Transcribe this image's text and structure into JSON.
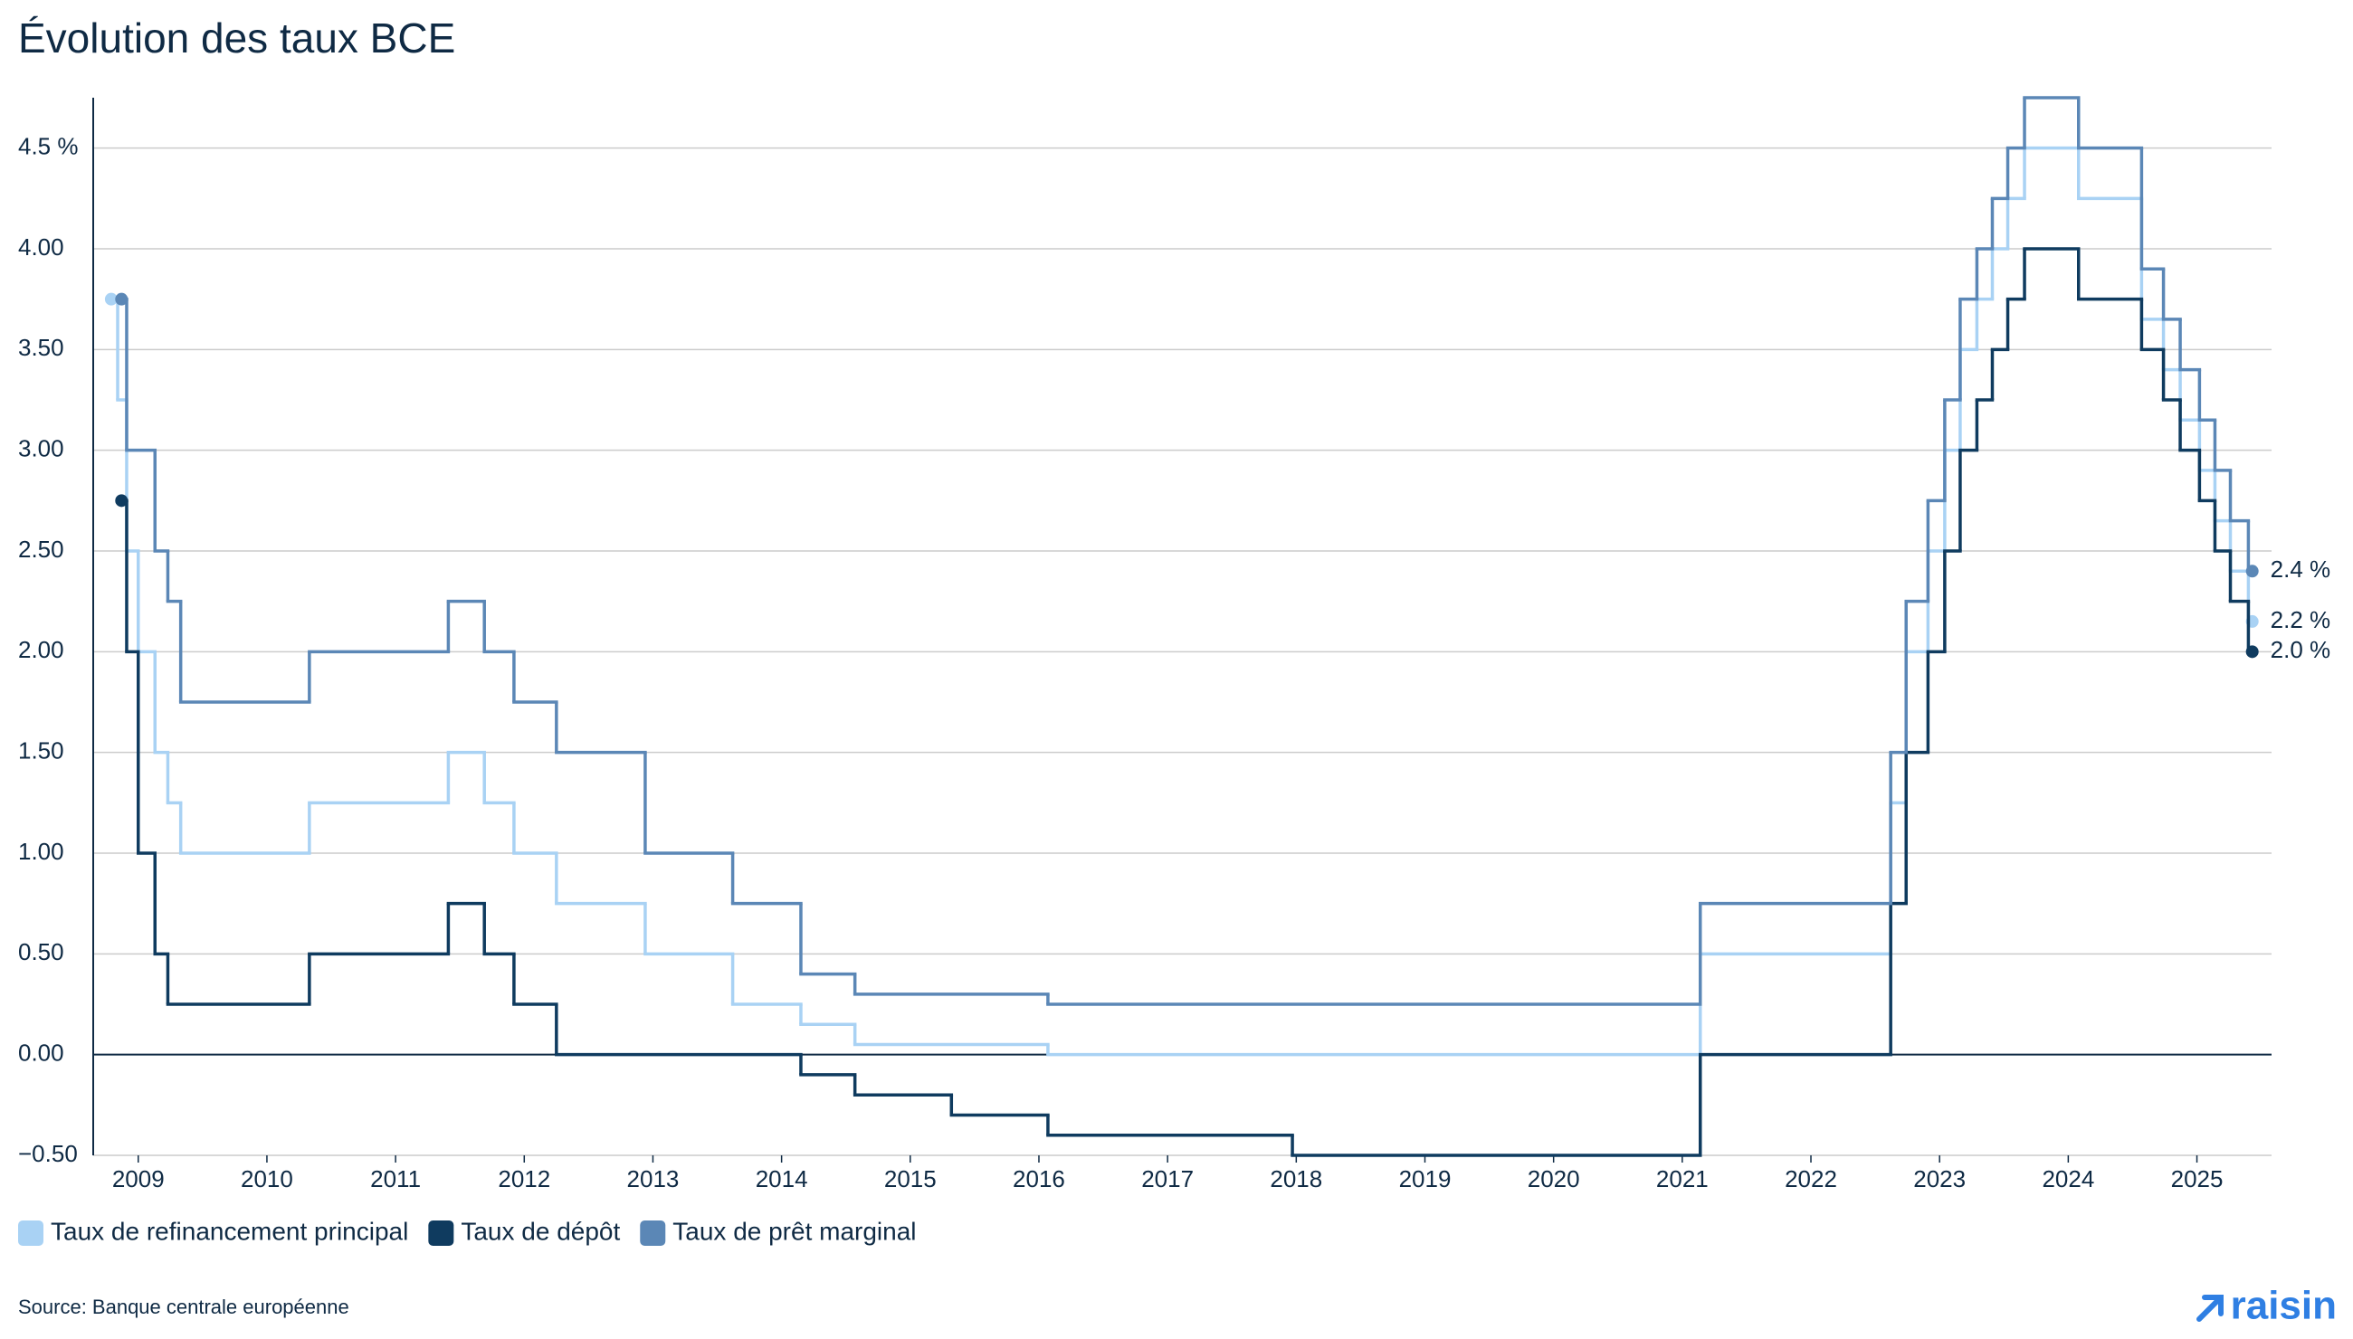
{
  "chart_data": {
    "type": "step",
    "title": "Évolution des taux BCE",
    "source": "Source: Banque centrale européenne",
    "brand": "raisin",
    "xlim": [
      2008.65,
      2025.58
    ],
    "xticks": [
      2009,
      2010,
      2011,
      2012,
      2013,
      2014,
      2015,
      2016,
      2017,
      2018,
      2019,
      2020,
      2021,
      2022,
      2023,
      2024,
      2025
    ],
    "ylim": [
      -0.5,
      4.75
    ],
    "yticks": [
      {
        "value": -0.5,
        "label": "−0.50"
      },
      {
        "value": 0,
        "label": "0.00"
      },
      {
        "value": 0.5,
        "label": "0.50"
      },
      {
        "value": 1,
        "label": "1.00"
      },
      {
        "value": 1.5,
        "label": "1.50"
      },
      {
        "value": 2,
        "label": "2.00"
      },
      {
        "value": 2.5,
        "label": "2.50"
      },
      {
        "value": 3,
        "label": "3.00"
      },
      {
        "value": 3.5,
        "label": "3.50"
      },
      {
        "value": 4,
        "label": "4.00"
      },
      {
        "value": 4.5,
        "label": "4.5 %"
      }
    ],
    "grid": true,
    "legend": "bottom-left",
    "series": [
      {
        "name": "Taux de refinancement principal",
        "color": "#a9d2f4",
        "end_label": "2.2 %",
        "x": [
          2008.79,
          2008.84,
          2008.91,
          2009.0,
          2009.13,
          2009.23,
          2009.33,
          2010.33,
          2011.41,
          2011.69,
          2011.92,
          2012.25,
          2012.94,
          2013.62,
          2014.15,
          2014.57,
          2016.07,
          2021.14,
          2022.62,
          2022.74,
          2022.91,
          2023.04,
          2023.16,
          2023.29,
          2023.41,
          2023.53,
          2023.66,
          2024.08,
          2024.57,
          2024.74,
          2024.87,
          2025.02,
          2025.14,
          2025.26,
          2025.4,
          2025.43
        ],
        "values": [
          3.75,
          3.25,
          2.5,
          2.0,
          1.5,
          1.25,
          1.0,
          1.25,
          1.5,
          1.25,
          1.0,
          0.75,
          0.5,
          0.25,
          0.15,
          0.05,
          0.0,
          0.5,
          1.25,
          2.0,
          2.5,
          3.0,
          3.5,
          3.75,
          4.0,
          4.25,
          4.5,
          4.25,
          3.65,
          3.4,
          3.15,
          2.9,
          2.65,
          2.4,
          2.15,
          2.15
        ]
      },
      {
        "name": "Taux de dépôt",
        "color": "#0f3b5f",
        "end_label": "2.0 %",
        "x": [
          2008.87,
          2008.91,
          2009.0,
          2009.13,
          2009.23,
          2010.33,
          2011.41,
          2011.69,
          2011.92,
          2012.25,
          2014.15,
          2014.57,
          2015.32,
          2016.07,
          2017.97,
          2021.14,
          2022.62,
          2022.74,
          2022.91,
          2023.04,
          2023.16,
          2023.29,
          2023.41,
          2023.53,
          2023.66,
          2024.08,
          2024.57,
          2024.74,
          2024.87,
          2025.02,
          2025.14,
          2025.26,
          2025.4,
          2025.43
        ],
        "values": [
          2.75,
          2.0,
          1.0,
          0.5,
          0.25,
          0.5,
          0.75,
          0.5,
          0.25,
          0.0,
          -0.1,
          -0.2,
          -0.3,
          -0.4,
          -0.5,
          0.0,
          0.75,
          1.5,
          2.0,
          2.5,
          3.0,
          3.25,
          3.5,
          3.75,
          4.0,
          3.75,
          3.5,
          3.25,
          3.0,
          2.75,
          2.5,
          2.25,
          2.0,
          2.0
        ]
      },
      {
        "name": "Taux de prêt marginal",
        "color": "#5b87b6",
        "end_label": "2.4 %",
        "x": [
          2008.87,
          2008.91,
          2009.13,
          2009.23,
          2009.33,
          2010.33,
          2011.41,
          2011.69,
          2011.92,
          2012.25,
          2012.94,
          2013.62,
          2014.15,
          2014.57,
          2016.07,
          2021.14,
          2022.62,
          2022.74,
          2022.91,
          2023.04,
          2023.16,
          2023.29,
          2023.41,
          2023.53,
          2023.66,
          2024.08,
          2024.57,
          2024.74,
          2024.87,
          2025.02,
          2025.14,
          2025.26,
          2025.4,
          2025.43
        ],
        "values": [
          3.75,
          3.0,
          2.5,
          2.25,
          1.75,
          2.0,
          2.25,
          2.0,
          1.75,
          1.5,
          1.0,
          0.75,
          0.4,
          0.3,
          0.25,
          0.75,
          1.5,
          2.25,
          2.75,
          3.25,
          3.75,
          4.0,
          4.25,
          4.5,
          4.75,
          4.5,
          3.9,
          3.65,
          3.4,
          3.15,
          2.9,
          2.65,
          2.4,
          2.4
        ]
      }
    ]
  }
}
